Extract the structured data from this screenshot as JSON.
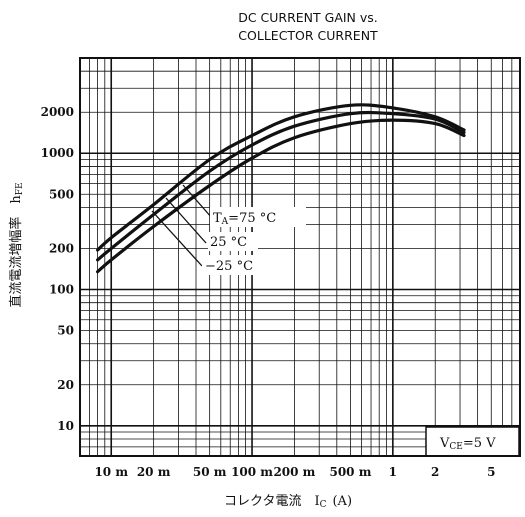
{
  "chart_data": {
    "type": "line",
    "title_line1": "DC CURRENT GAIN vs.",
    "title_line2": "COLLECTOR CURRENT",
    "ylabel": "直流電流増幅率　h",
    "ylabel_sub": "FE",
    "xlabel": "コレクタ電流　I",
    "xlabel_sub": "C",
    "xlabel_unit": "(A)",
    "x_scale": "log",
    "y_scale": "log",
    "xlim": [
      0.006,
      8
    ],
    "ylim": [
      6,
      5000
    ],
    "grid": true,
    "x_ticks": [
      {
        "value": 0.01,
        "label": "10 m"
      },
      {
        "value": 0.02,
        "label": "20 m"
      },
      {
        "value": 0.05,
        "label": "50 m"
      },
      {
        "value": 0.1,
        "label": "100 m"
      },
      {
        "value": 0.2,
        "label": "200 m"
      },
      {
        "value": 0.5,
        "label": "500 m"
      },
      {
        "value": 1,
        "label": "1"
      },
      {
        "value": 2,
        "label": "2"
      },
      {
        "value": 5,
        "label": "5"
      }
    ],
    "y_ticks": [
      {
        "value": 10,
        "label": "10"
      },
      {
        "value": 20,
        "label": "20"
      },
      {
        "value": 50,
        "label": "50"
      },
      {
        "value": 100,
        "label": "100"
      },
      {
        "value": 200,
        "label": "200"
      },
      {
        "value": 500,
        "label": "500"
      },
      {
        "value": 1000,
        "label": "1000"
      },
      {
        "value": 2000,
        "label": "2000"
      }
    ],
    "series": [
      {
        "name": "T_A=75 °C",
        "x": [
          0.008,
          0.01,
          0.02,
          0.05,
          0.1,
          0.2,
          0.5,
          1,
          2,
          3.2
        ],
        "y": [
          195,
          240,
          420,
          900,
          1350,
          1850,
          2250,
          2150,
          1850,
          1480
        ]
      },
      {
        "name": "25 °C",
        "x": [
          0.008,
          0.01,
          0.02,
          0.05,
          0.1,
          0.2,
          0.5,
          1,
          2,
          3.2
        ],
        "y": [
          165,
          200,
          355,
          740,
          1150,
          1580,
          1950,
          1950,
          1780,
          1420
        ]
      },
      {
        "name": "−25 °C",
        "x": [
          0.008,
          0.01,
          0.02,
          0.05,
          0.1,
          0.2,
          0.5,
          1,
          2,
          3.2
        ],
        "y": [
          135,
          165,
          290,
          580,
          920,
          1300,
          1650,
          1750,
          1650,
          1350
        ]
      }
    ],
    "annotation_labels": {
      "ta_prefix": "T",
      "ta_sub": "A",
      "t1": "=75 °C",
      "t2": "25 °C",
      "t3": "−25 °C"
    },
    "condition": {
      "prefix": "V",
      "sub": "CE",
      "text": "=5 V"
    }
  }
}
